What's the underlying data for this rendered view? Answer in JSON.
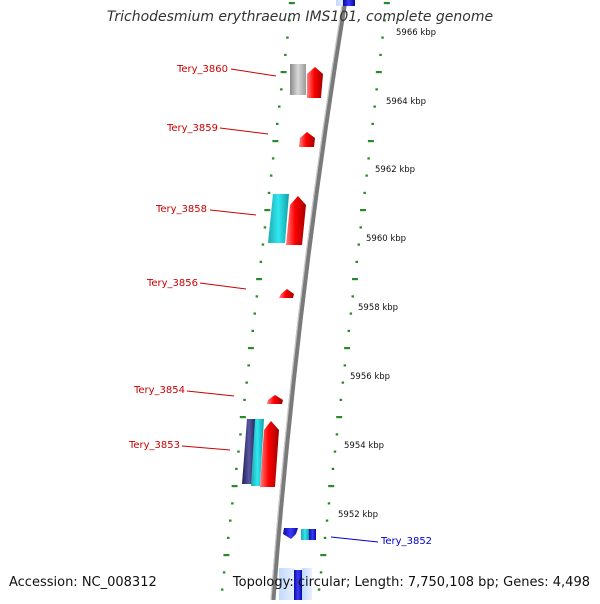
{
  "title": "Trichodesmium erythraeum IMS101, complete genome",
  "footer": {
    "accession": "Accession: NC_008312",
    "summary": "Topology: circular; Length: 7,750,108 bp; Genes: 4,498"
  },
  "colors": {
    "backbone": "#888888",
    "tick": "#2a8a2a",
    "forward_gene": "#e00000",
    "forward_label": "#cc0000",
    "reverse_gene": "#1a1ad0",
    "reverse_label": "#0000cc",
    "cyan_feature": "#18c8d0",
    "gray_feature": "#b8b8b8",
    "dark_feature": "#353578"
  },
  "scale_labels": [
    "5966 kbp",
    "5964 kbp",
    "5962 kbp",
    "5960 kbp",
    "5958 kbp",
    "5956 kbp",
    "5954 kbp",
    "5952 kbp"
  ],
  "genes": [
    {
      "label": "Tery_3860",
      "strand": "forward"
    },
    {
      "label": "Tery_3859",
      "strand": "forward"
    },
    {
      "label": "Tery_3858",
      "strand": "forward"
    },
    {
      "label": "Tery_3856",
      "strand": "forward"
    },
    {
      "label": "Tery_3854",
      "strand": "forward"
    },
    {
      "label": "Tery_3853",
      "strand": "forward"
    },
    {
      "label": "Tery_3852",
      "strand": "reverse"
    }
  ]
}
